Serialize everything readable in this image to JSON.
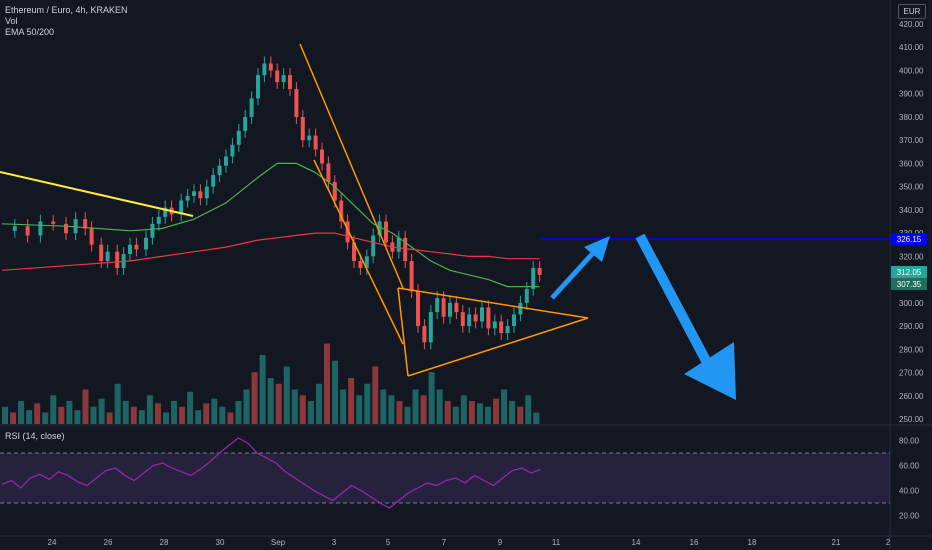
{
  "legend": {
    "title": "Ethereum / Euro, 4h, KRAKEN",
    "vol": "Vol",
    "ema": "EMA 50/200"
  },
  "currency": "EUR",
  "rsi_label": "RSI (14, close)",
  "colors": {
    "background": "#131722",
    "up": "#26a69a",
    "down": "#ef5350",
    "ema50": "#4caf50",
    "ema200": "#f23645",
    "trendline": "#ffeb3b",
    "pattern": "#ff9800",
    "resistance": "#0000ff",
    "arrow": "#2196f3",
    "rsi": "#9c27b0",
    "rsi_band": "#7e57c2"
  },
  "chart_data": {
    "type": "candlestick",
    "title": "Ethereum / Euro, 4h, KRAKEN",
    "price_axis": {
      "ticks": [
        250,
        260,
        270,
        280,
        290,
        300,
        310,
        320,
        330,
        340,
        350,
        360,
        370,
        380,
        390,
        400,
        410,
        420
      ],
      "range": [
        248,
        420
      ],
      "labels": {
        "current_resistance": "326.15",
        "last_price": "312.05",
        "ema_value": "307.35"
      }
    },
    "time_axis": {
      "ticks": [
        "24",
        "26",
        "28",
        "30",
        "Sep",
        "3",
        "5",
        "7",
        "9",
        "11",
        "14",
        "16",
        "18",
        "21",
        "2"
      ]
    },
    "resistance_level": 326.15,
    "price_path": [
      [
        0,
        331
      ],
      [
        4,
        333
      ],
      [
        8,
        329
      ],
      [
        12,
        335
      ],
      [
        16,
        334
      ],
      [
        20,
        330
      ],
      [
        23,
        336
      ],
      [
        26,
        332
      ],
      [
        28,
        325
      ],
      [
        31,
        318
      ],
      [
        33,
        322
      ],
      [
        36,
        315
      ],
      [
        38,
        321
      ],
      [
        40,
        325
      ],
      [
        42,
        323
      ],
      [
        45,
        328
      ],
      [
        47,
        334
      ],
      [
        49,
        337
      ],
      [
        51,
        341
      ],
      [
        53,
        338
      ],
      [
        56,
        344
      ],
      [
        58,
        346
      ],
      [
        60,
        348
      ],
      [
        62,
        345
      ],
      [
        64,
        350
      ],
      [
        66,
        355
      ],
      [
        68,
        359
      ],
      [
        70,
        363
      ],
      [
        72,
        368
      ],
      [
        74,
        374
      ],
      [
        76,
        380
      ],
      [
        78,
        388
      ],
      [
        80,
        398
      ],
      [
        82,
        403
      ],
      [
        84,
        400
      ],
      [
        86,
        395
      ],
      [
        88,
        398
      ],
      [
        90,
        392
      ],
      [
        92,
        380
      ],
      [
        94,
        370
      ],
      [
        96,
        372
      ],
      [
        98,
        366
      ],
      [
        100,
        360
      ],
      [
        102,
        352
      ],
      [
        104,
        344
      ],
      [
        106,
        335
      ],
      [
        108,
        326
      ],
      [
        110,
        318
      ],
      [
        112,
        315
      ],
      [
        114,
        320
      ],
      [
        116,
        329
      ],
      [
        118,
        335
      ],
      [
        120,
        326
      ],
      [
        122,
        322
      ],
      [
        124,
        328
      ],
      [
        126,
        318
      ],
      [
        128,
        305
      ],
      [
        130,
        290
      ],
      [
        132,
        283
      ],
      [
        134,
        296
      ],
      [
        136,
        302
      ],
      [
        138,
        294
      ],
      [
        140,
        300
      ],
      [
        142,
        296
      ],
      [
        144,
        290
      ],
      [
        146,
        295
      ],
      [
        148,
        292
      ],
      [
        150,
        298
      ],
      [
        152,
        289
      ],
      [
        154,
        292
      ],
      [
        156,
        287
      ],
      [
        158,
        290
      ],
      [
        160,
        295
      ],
      [
        162,
        300
      ],
      [
        164,
        306
      ],
      [
        166,
        315
      ],
      [
        168,
        312
      ]
    ],
    "ema50_path": [
      [
        0,
        334
      ],
      [
        20,
        333
      ],
      [
        40,
        331
      ],
      [
        50,
        332
      ],
      [
        60,
        336
      ],
      [
        70,
        343
      ],
      [
        80,
        354
      ],
      [
        86,
        360
      ],
      [
        92,
        360
      ],
      [
        98,
        356
      ],
      [
        104,
        350
      ],
      [
        110,
        342
      ],
      [
        116,
        334
      ],
      [
        122,
        330
      ],
      [
        128,
        324
      ],
      [
        134,
        318
      ],
      [
        140,
        314
      ],
      [
        146,
        312
      ],
      [
        152,
        310
      ],
      [
        158,
        307
      ],
      [
        164,
        307
      ],
      [
        168,
        307
      ]
    ],
    "ema200_path": [
      [
        0,
        314
      ],
      [
        20,
        316
      ],
      [
        40,
        318
      ],
      [
        50,
        320
      ],
      [
        60,
        322
      ],
      [
        70,
        324
      ],
      [
        80,
        327
      ],
      [
        86,
        328
      ],
      [
        92,
        329
      ],
      [
        98,
        330
      ],
      [
        104,
        330
      ],
      [
        110,
        328
      ],
      [
        116,
        326
      ],
      [
        122,
        324
      ],
      [
        128,
        323
      ],
      [
        134,
        322
      ],
      [
        140,
        321
      ],
      [
        146,
        320
      ],
      [
        152,
        320
      ],
      [
        158,
        319
      ],
      [
        164,
        319
      ],
      [
        168,
        319
      ]
    ],
    "volume": {
      "note": "relative volume per bar 0-1",
      "values": [
        0.15,
        0.1,
        0.2,
        0.12,
        0.18,
        0.1,
        0.25,
        0.15,
        0.2,
        0.12,
        0.3,
        0.15,
        0.22,
        0.1,
        0.35,
        0.2,
        0.15,
        0.12,
        0.25,
        0.18,
        0.1,
        0.2,
        0.15,
        0.28,
        0.12,
        0.18,
        0.22,
        0.15,
        0.1,
        0.2,
        0.3,
        0.45,
        0.6,
        0.4,
        0.35,
        0.5,
        0.3,
        0.25,
        0.2,
        0.35,
        0.7,
        0.55,
        0.3,
        0.4,
        0.25,
        0.35,
        0.5,
        0.3,
        0.25,
        0.2,
        0.15,
        0.3,
        0.25,
        0.45,
        0.3,
        0.2,
        0.15,
        0.25,
        0.2,
        0.18,
        0.15,
        0.22,
        0.3,
        0.2,
        0.15,
        0.25,
        0.1
      ]
    },
    "rsi": {
      "axis_ticks": [
        20,
        40,
        60,
        80
      ],
      "upper_band": 70,
      "lower_band": 30,
      "values": [
        45,
        48,
        42,
        50,
        53,
        49,
        55,
        52,
        47,
        44,
        50,
        56,
        58,
        52,
        48,
        54,
        60,
        62,
        58,
        55,
        52,
        57,
        63,
        70,
        76,
        82,
        78,
        70,
        66,
        62,
        55,
        50,
        45,
        40,
        36,
        32,
        38,
        44,
        40,
        35,
        30,
        26,
        32,
        38,
        42,
        46,
        44,
        48,
        50,
        46,
        52,
        48,
        44,
        50,
        56,
        58,
        54,
        57
      ]
    }
  }
}
